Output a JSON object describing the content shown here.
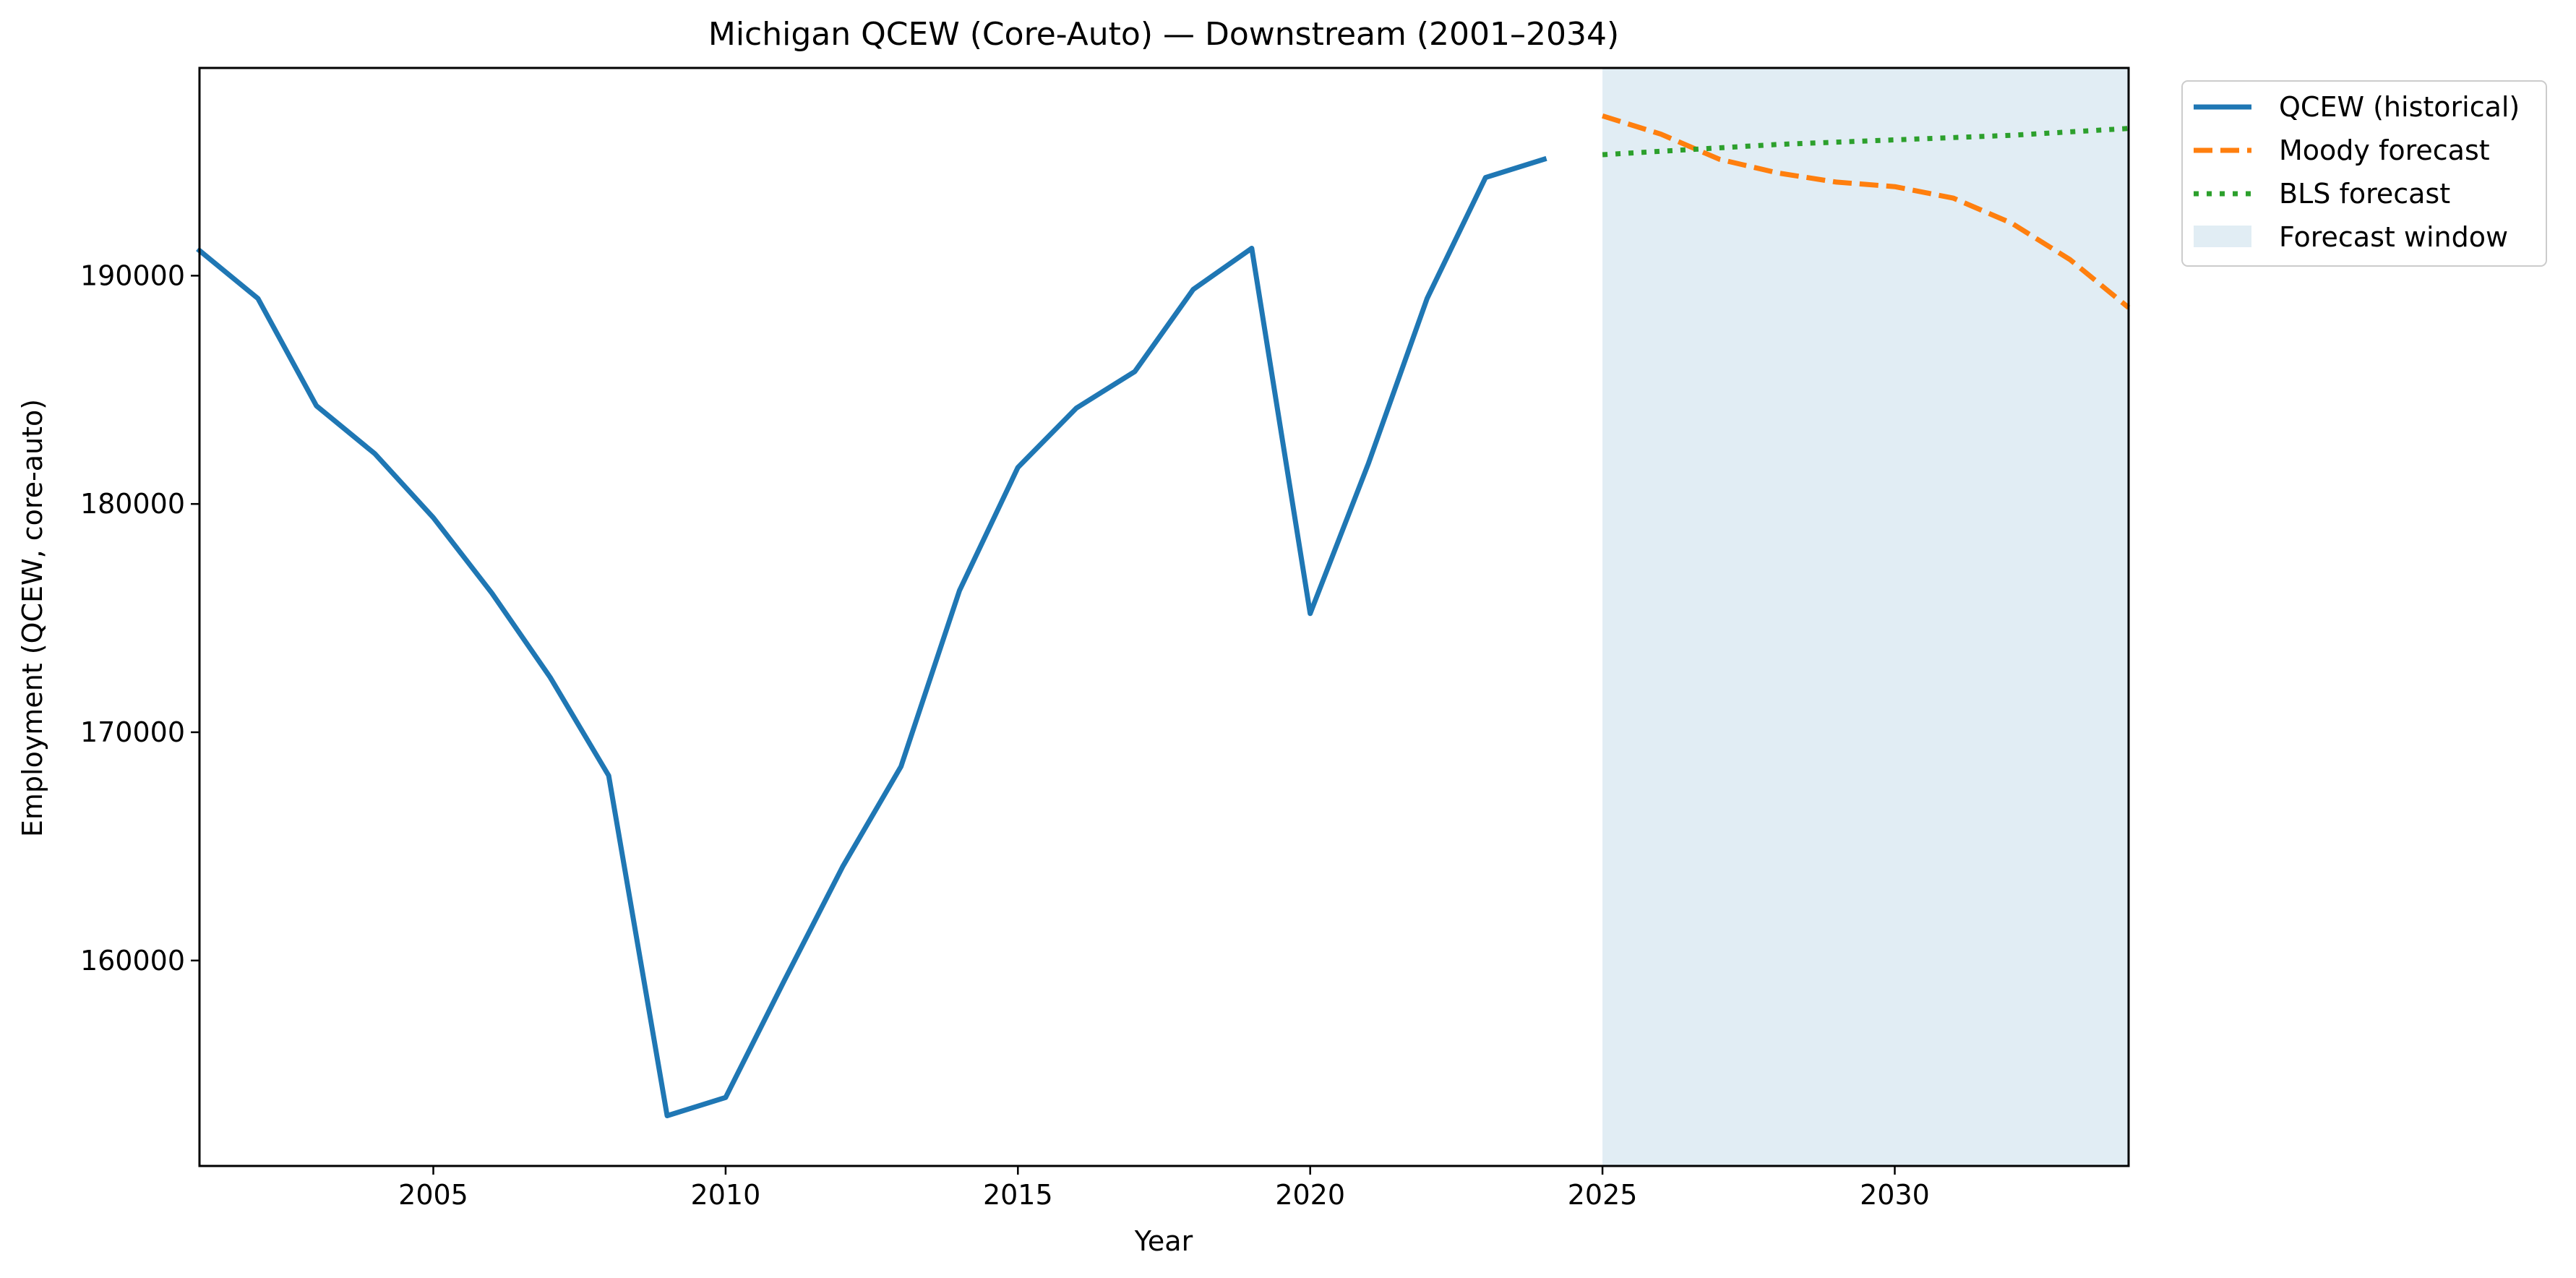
{
  "chart_data": {
    "type": "line",
    "title": "Michigan QCEW (Core-Auto) — Downstream (2001–2034)",
    "xlabel": "Year",
    "ylabel": "Employment (QCEW, core-auto)",
    "xlim": [
      2001,
      2034
    ],
    "ylim": [
      151000,
      199100
    ],
    "x_ticks": [
      2005,
      2010,
      2015,
      2020,
      2025,
      2030
    ],
    "y_ticks": [
      160000,
      170000,
      180000,
      190000
    ],
    "x_tick_labels": [
      "2005",
      "2010",
      "2015",
      "2020",
      "2025",
      "2030"
    ],
    "y_tick_labels": [
      "160000",
      "170000",
      "180000",
      "190000"
    ],
    "grid": false,
    "legend_position": "outside-top-right",
    "shaded_region": {
      "name": "Forecast window",
      "x_start": 2025,
      "x_end": 2034,
      "color": "#e1edf4"
    },
    "series": [
      {
        "name": "QCEW (historical)",
        "style": "solid",
        "color": "#1f77b4",
        "x": [
          2001,
          2002,
          2003,
          2004,
          2005,
          2006,
          2007,
          2008,
          2009,
          2010,
          2011,
          2012,
          2013,
          2014,
          2015,
          2016,
          2017,
          2018,
          2019,
          2020,
          2021,
          2022,
          2023,
          2024
        ],
        "y": [
          191100,
          189000,
          184300,
          182200,
          179400,
          176100,
          172400,
          168100,
          153200,
          154000,
          159100,
          164100,
          168500,
          176200,
          181600,
          184200,
          185800,
          189400,
          191200,
          175200,
          181800,
          189000,
          194300,
          195100
        ]
      },
      {
        "name": "Moody forecast",
        "style": "dashed",
        "color": "#ff7f0e",
        "x": [
          2025,
          2026,
          2027,
          2028,
          2029,
          2030,
          2031,
          2032,
          2033,
          2034
        ],
        "y": [
          197000,
          196200,
          195100,
          194500,
          194100,
          193900,
          193400,
          192300,
          190700,
          188600
        ]
      },
      {
        "name": "BLS forecast",
        "style": "dotted",
        "color": "#2ca02c",
        "x": [
          2025,
          2026,
          2027,
          2028,
          2029,
          2030,
          2031,
          2032,
          2033,
          2034
        ],
        "y": [
          195300,
          195450,
          195600,
          195750,
          195850,
          195950,
          196050,
          196150,
          196300,
          196450
        ]
      }
    ]
  }
}
